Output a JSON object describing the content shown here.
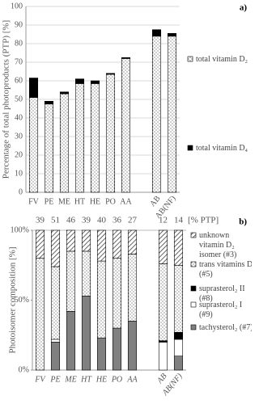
{
  "chart_data": [
    {
      "type": "stacked_bar",
      "panel_label": "a)",
      "y_label": "Percentage of total photoproducts (PTP) [%]",
      "categories": [
        "FV",
        "PE",
        "ME",
        "HT",
        "HE",
        "PO",
        "AA",
        null,
        "AB",
        "AB(NF)"
      ],
      "series": [
        {
          "name": "total vitamin D₂",
          "color": "#555555",
          "pattern": "dots",
          "values": [
            51,
            47.5,
            53,
            58.5,
            58.5,
            63.5,
            72,
            null,
            84,
            84
          ]
        },
        {
          "name": "total vitamin D₄",
          "color": "#000000",
          "pattern": "solid",
          "values": [
            10.5,
            1.5,
            1,
            2.5,
            1.5,
            0.5,
            0.5,
            null,
            3.5,
            1.5
          ]
        }
      ],
      "ylim": [
        0,
        100
      ],
      "yticks": [
        0,
        10,
        20,
        30,
        40,
        50,
        60,
        70,
        80,
        90,
        100
      ],
      "grid": true
    },
    {
      "type": "stacked_bar",
      "panel_label": "b)",
      "y_label": "Photoisomer composition [%]",
      "categories": [
        "FV",
        "PE",
        "ME",
        "HT",
        "HE",
        "PO",
        "AA",
        null,
        "AB",
        "AB(NF)"
      ],
      "top_labels": [
        39,
        51,
        46,
        39,
        40,
        36,
        27,
        null,
        12,
        14
      ],
      "top_labels_unit": "[% PTP]",
      "series": [
        {
          "name": "tachysterol₂ (#7)",
          "color": "#808080",
          "pattern": "solid",
          "values": [
            0,
            20,
            42,
            53,
            23,
            30,
            35,
            null,
            0,
            10
          ]
        },
        {
          "name": "suprasterol₂ I (#9)",
          "color": "#ffffff",
          "pattern": "solid",
          "values": [
            0,
            2,
            0,
            0,
            0,
            0,
            0,
            null,
            20,
            12
          ]
        },
        {
          "name": "suprasterol₂ II (#8)",
          "color": "#000000",
          "pattern": "solid",
          "values": [
            0,
            0,
            0,
            0,
            0,
            0,
            0,
            null,
            1,
            5
          ]
        },
        {
          "name": "trans vitamins D₂ (#5)",
          "color": "#555555",
          "pattern": "dots",
          "values": [
            80,
            52,
            43,
            32,
            55,
            50,
            48,
            null,
            55,
            48
          ]
        },
        {
          "name": "unknown vitamin D₂ isomer (#3)",
          "color": "#333333",
          "pattern": "hatch",
          "values": [
            20,
            26,
            15,
            15,
            22,
            20,
            17,
            null,
            24,
            25
          ]
        }
      ],
      "ylim": [
        0,
        100
      ],
      "yticks": [
        {
          "value": 0,
          "label": "0%"
        },
        {
          "value": 50,
          "label": "50%"
        },
        {
          "value": 100,
          "label": "100%"
        }
      ],
      "grid": false
    }
  ]
}
